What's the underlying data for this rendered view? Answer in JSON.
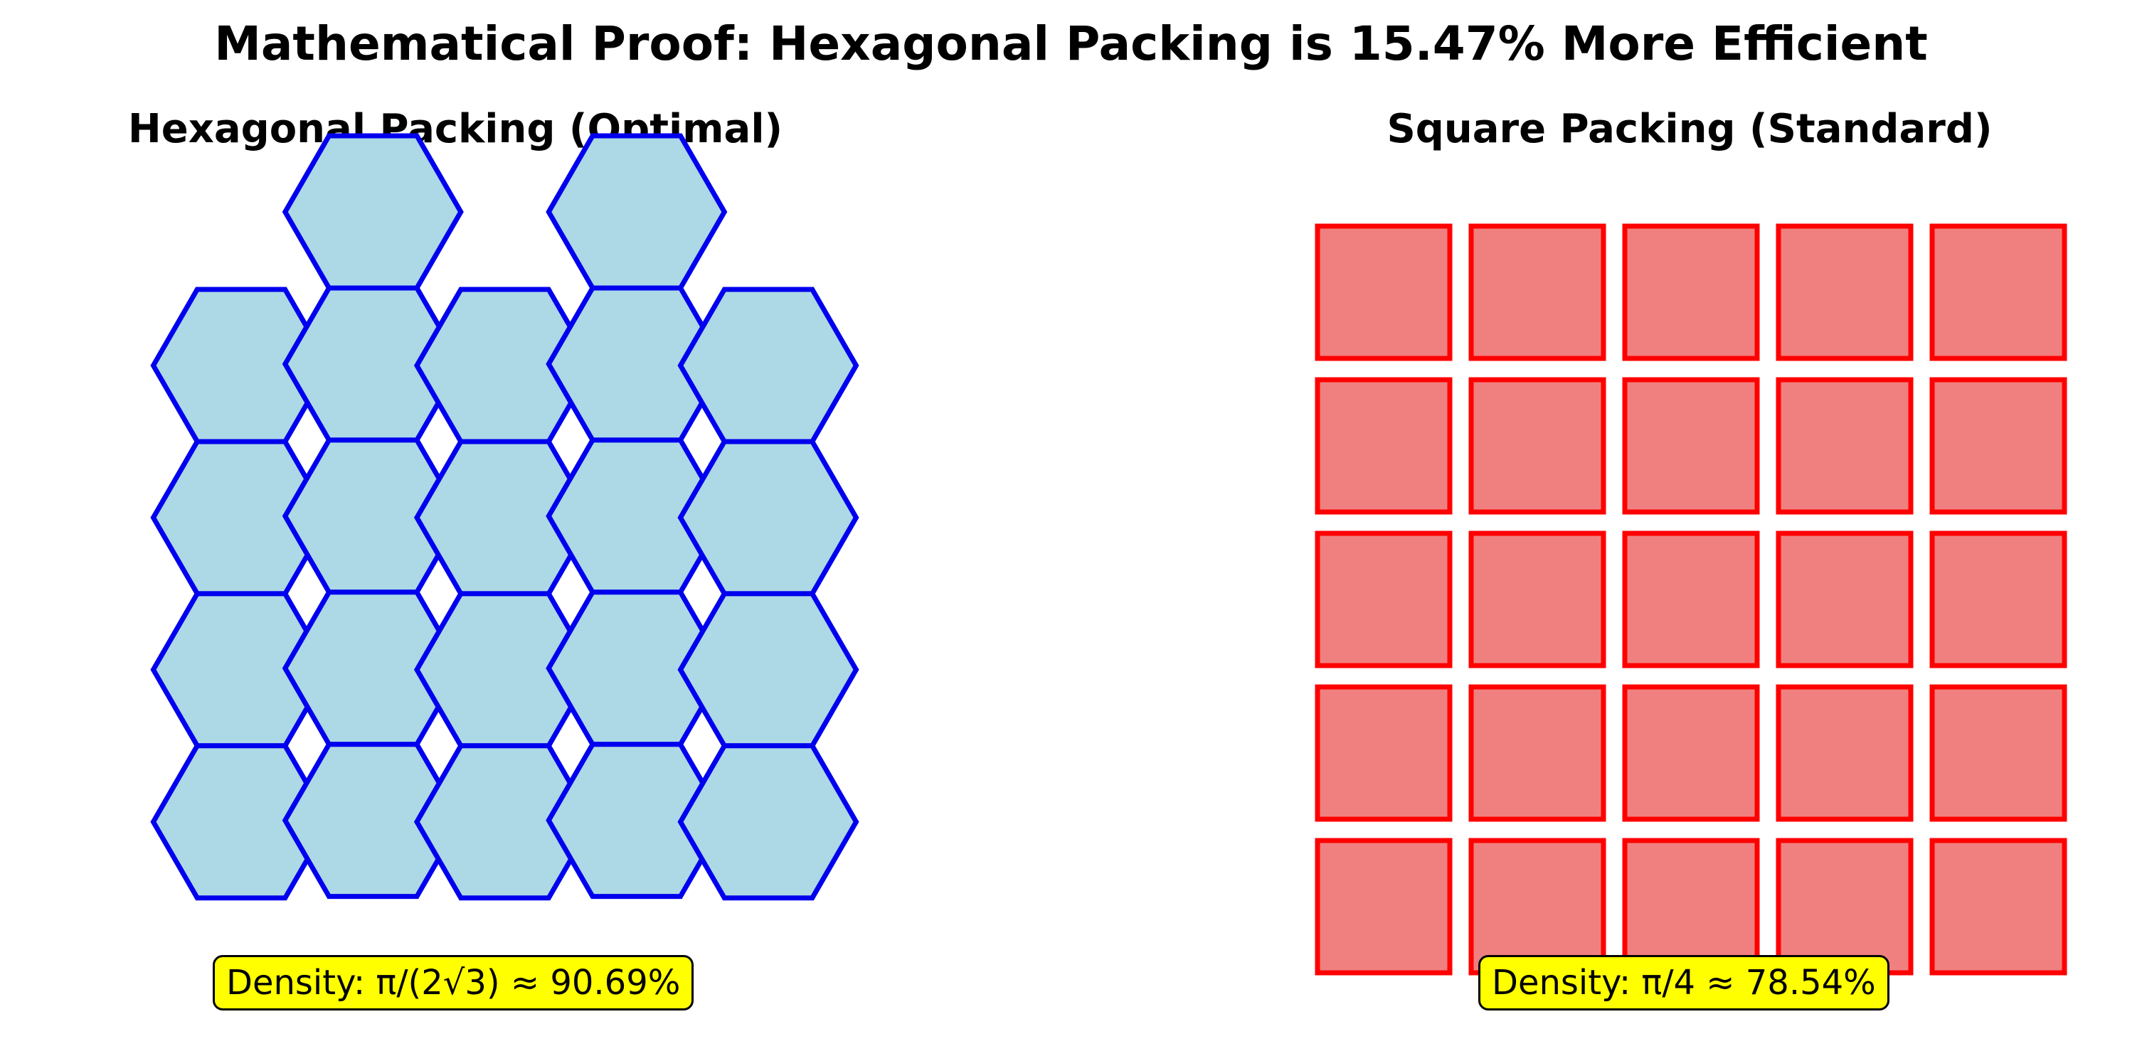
{
  "title": "Mathematical Proof: Hexagonal Packing is 15.47% More Efficient",
  "panels": {
    "hexagonal": {
      "title": "Hexagonal Packing (Optimal)",
      "density_label": "Density: π/(2√3) ≈ 90.69%",
      "columns": [
        4,
        5,
        4,
        5,
        4
      ],
      "fill_color": "#add8e6",
      "edge_color": "#0000ee"
    },
    "square": {
      "title": "Square Packing (Standard)",
      "density_label": "Density: π/4 ≈ 78.54%",
      "rows": 5,
      "cols": 5,
      "fill_color": "#f08080",
      "edge_color": "#ff0000"
    }
  }
}
